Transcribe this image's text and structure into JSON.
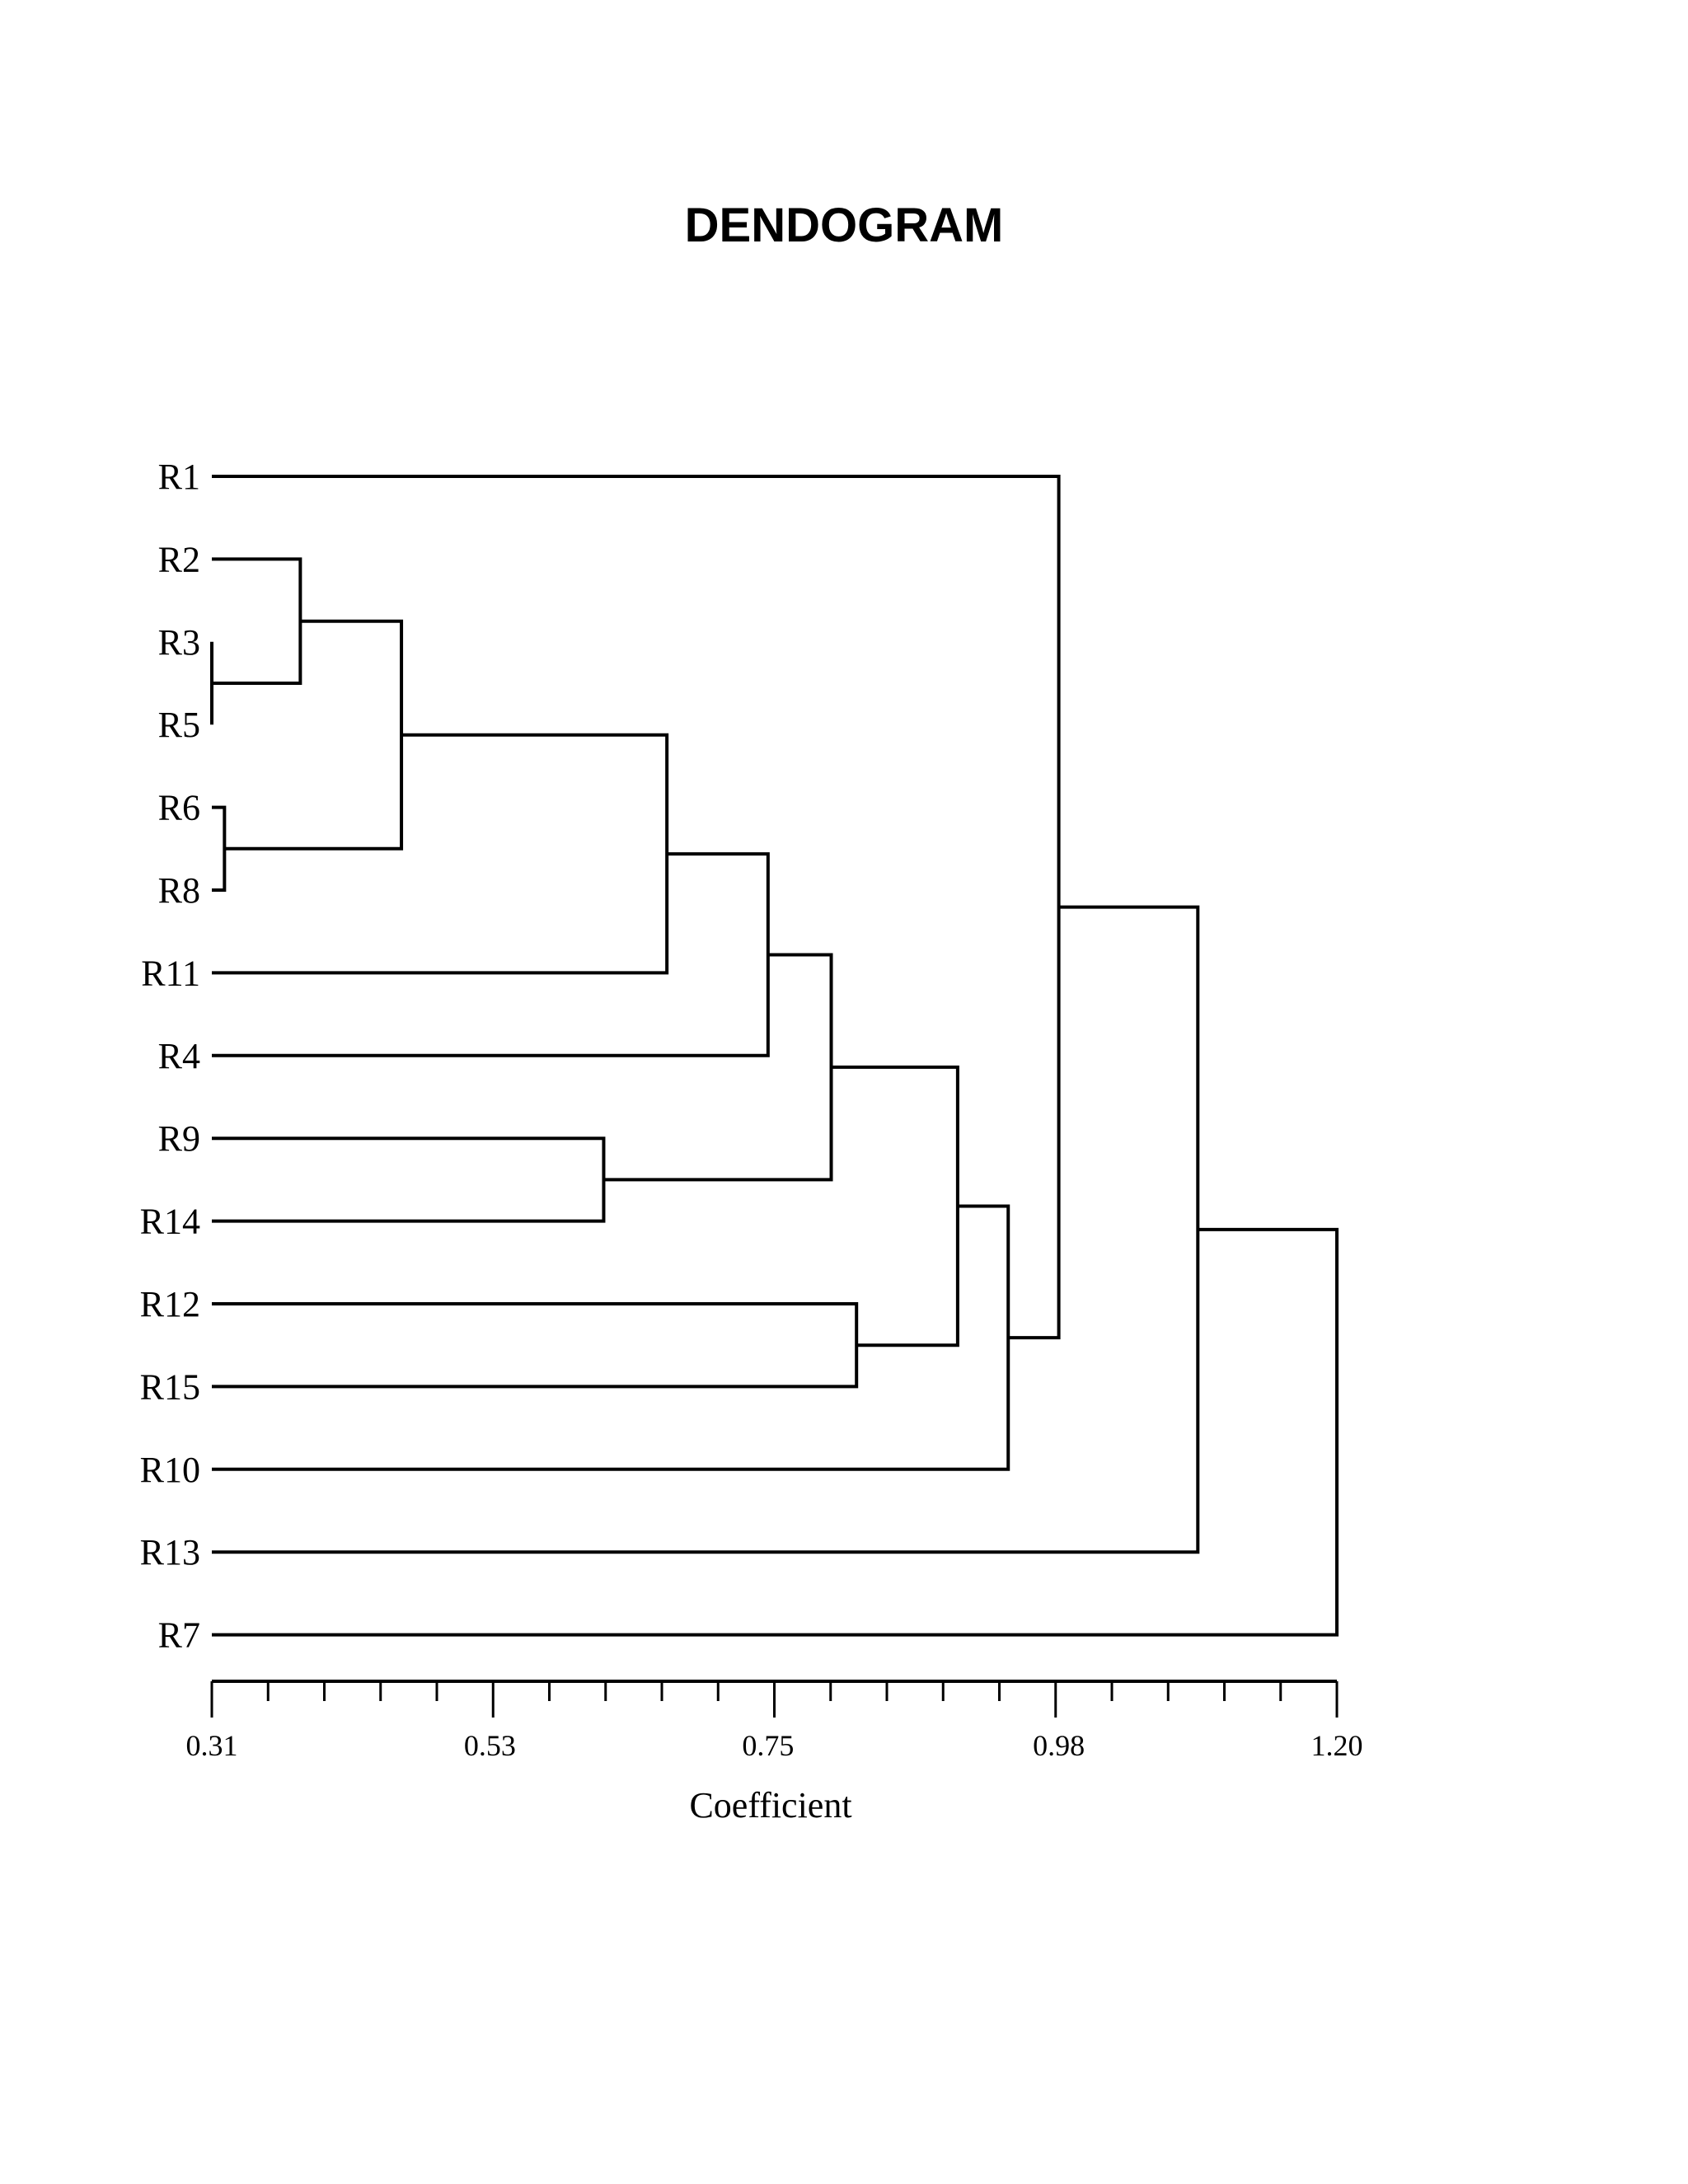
{
  "chart_data": {
    "type": "dendrogram",
    "title": "DENDOGRAM",
    "xlabel": "Coefficient",
    "xlim": [
      0.31,
      1.2
    ],
    "tick_labels": [
      "0.31",
      "0.53",
      "0.75",
      "0.98",
      "1.20"
    ],
    "tick_values": [
      0.31,
      0.53,
      0.75,
      0.98,
      1.2
    ],
    "leaves": [
      "R1",
      "R2",
      "R3",
      "R5",
      "R6",
      "R8",
      "R11",
      "R4",
      "R9",
      "R14",
      "R12",
      "R15",
      "R10",
      "R13",
      "R7"
    ],
    "merges": [
      {
        "a": "R3",
        "b": "R5",
        "height": 0.31
      },
      {
        "a": "R6",
        "b": "R8",
        "height": 0.32
      },
      {
        "a": "R2",
        "b": 0,
        "height": 0.38
      },
      {
        "a": 2,
        "b": 1,
        "height": 0.46
      },
      {
        "a": 3,
        "b": "R11",
        "height": 0.67
      },
      {
        "a": "R9",
        "b": "R14",
        "height": 0.62
      },
      {
        "a": 4,
        "b": "R4",
        "height": 0.75
      },
      {
        "a": 6,
        "b": 5,
        "height": 0.8
      },
      {
        "a": "R12",
        "b": "R15",
        "height": 0.82
      },
      {
        "a": 7,
        "b": 8,
        "height": 0.9
      },
      {
        "a": 9,
        "b": "R10",
        "height": 0.94
      },
      {
        "a": "R1",
        "b": 10,
        "height": 0.98
      },
      {
        "a": 11,
        "b": "R13",
        "height": 1.09
      },
      {
        "a": 12,
        "b": "R7",
        "height": 1.2
      }
    ]
  }
}
